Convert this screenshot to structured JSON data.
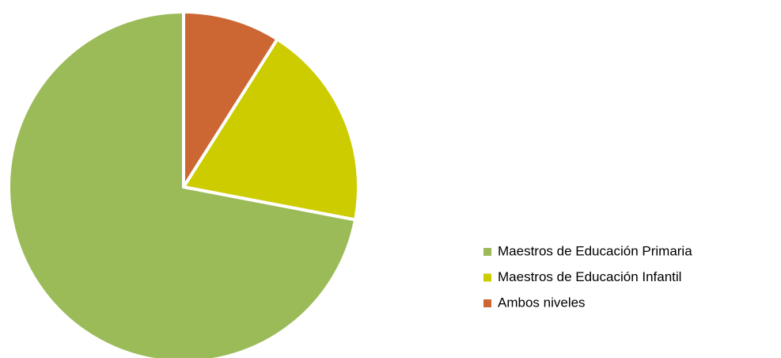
{
  "chart_data": {
    "type": "pie",
    "categories": [
      "Maestros de Educación Primaria",
      "Maestros de Educación Infantil",
      "Ambos niveles"
    ],
    "values": [
      72,
      19,
      9
    ],
    "colors": [
      "#9bbb59",
      "#cccc00",
      "#cc6633"
    ],
    "legend": "right"
  }
}
